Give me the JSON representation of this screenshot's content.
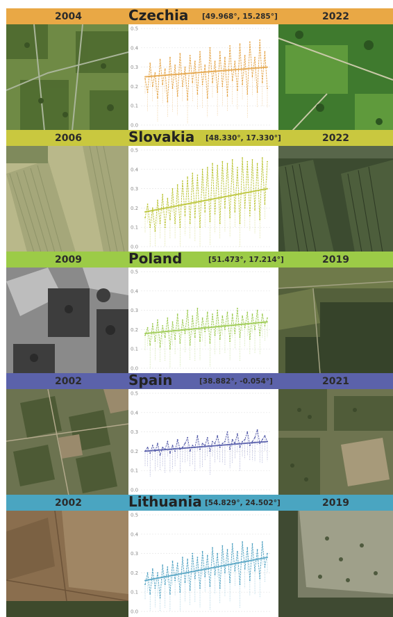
{
  "colors": {
    "czechia": "#E9A845",
    "slovakia": "#C9C83F",
    "poland": "#9CCB47",
    "spain": "#5B62AA",
    "lithuania": "#4AA5C1"
  },
  "panels": [
    {
      "id": "czechia",
      "year_left": "2004",
      "country": "Czechia",
      "coords": "[49.968°, 15.285°]",
      "year_right": "2022",
      "header_color": "#E9A845",
      "line_color": "#E3A141",
      "image_left": "aerial photograph, orchard rows with dirt tracks",
      "image_right": "aerial photograph, green orchard with scattered trees"
    },
    {
      "id": "slovakia",
      "year_left": "2006",
      "country": "Slovakia",
      "coords": "[48.330°, 17.330°]",
      "year_right": "2022",
      "header_color": "#C9C83F",
      "line_color": "#B8C22E",
      "image_left": "aerial photograph, striped agricultural fields",
      "image_right": "aerial photograph, dark green plantation blocks"
    },
    {
      "id": "poland",
      "year_left": "2009",
      "country": "Poland",
      "coords": "[51.473°, 17.214°]",
      "year_right": "2019",
      "header_color": "#9CCB47",
      "line_color": "#98C84A",
      "image_left": "grayscale aerial photograph, fields and tree stands",
      "image_right": "aerial photograph, forested parcels"
    },
    {
      "id": "spain",
      "year_left": "2002",
      "country": "Spain",
      "coords": "[38.882°, -0.054°]",
      "year_right": "2021",
      "header_color": "#5B62AA",
      "line_color": "#4E55A6",
      "image_left": "aerial photograph, patchwork of orchards",
      "image_right": "aerial photograph, orchards and scrubland"
    },
    {
      "id": "lithuania",
      "year_left": "2002",
      "country": "Lithuania",
      "coords": "[54.829°, 24.502°]",
      "year_right": "2019",
      "header_color": "#4AA5C1",
      "line_color": "#4C9FC0",
      "image_left": "aerial photograph, bare brown fields",
      "image_right": "aerial photograph, clearing with young forest"
    }
  ],
  "chart_data": [
    {
      "type": "line",
      "title": "",
      "yticks": [
        "0.0",
        "0.1",
        "0.2",
        "0.3",
        "0.4",
        "0.5"
      ],
      "ylim": [
        0,
        0.5
      ],
      "series": [
        {
          "values": [
            0.24,
            0.17,
            0.32,
            0.2,
            0.27,
            0.14,
            0.34,
            0.21,
            0.29,
            0.12,
            0.35,
            0.19,
            0.31,
            0.15,
            0.37,
            0.2,
            0.3,
            0.13,
            0.36,
            0.22,
            0.33,
            0.16,
            0.38,
            0.21,
            0.31,
            0.14,
            0.4,
            0.22,
            0.33,
            0.17,
            0.38,
            0.2,
            0.35,
            0.15,
            0.41,
            0.23,
            0.33,
            0.18,
            0.42,
            0.21,
            0.36,
            0.16,
            0.43,
            0.25,
            0.35,
            0.17,
            0.44,
            0.22,
            0.38,
            0.19
          ]
        },
        {
          "values": [
            0.25,
            0.3
          ]
        }
      ]
    },
    {
      "type": "line",
      "title": "",
      "yticks": [
        "0.0",
        "0.1",
        "0.2",
        "0.3",
        "0.4",
        "0.5"
      ],
      "ylim": [
        0,
        0.5
      ],
      "series": [
        {
          "values": [
            0.15,
            0.22,
            0.1,
            0.2,
            0.08,
            0.24,
            0.12,
            0.27,
            0.1,
            0.25,
            0.14,
            0.3,
            0.12,
            0.32,
            0.1,
            0.34,
            0.16,
            0.36,
            0.12,
            0.38,
            0.15,
            0.37,
            0.1,
            0.4,
            0.18,
            0.41,
            0.13,
            0.43,
            0.17,
            0.42,
            0.12,
            0.44,
            0.2,
            0.43,
            0.15,
            0.45,
            0.18,
            0.41,
            0.12,
            0.46,
            0.2,
            0.44,
            0.16,
            0.45,
            0.19,
            0.43,
            0.14,
            0.46,
            0.22,
            0.44
          ]
        },
        {
          "values": [
            0.18,
            0.3
          ]
        }
      ]
    },
    {
      "type": "line",
      "title": "",
      "yticks": [
        "0.0",
        "0.1",
        "0.2",
        "0.3",
        "0.4",
        "0.5"
      ],
      "ylim": [
        0,
        0.5
      ],
      "series": [
        {
          "values": [
            0.17,
            0.21,
            0.12,
            0.23,
            0.14,
            0.25,
            0.11,
            0.22,
            0.16,
            0.26,
            0.1,
            0.24,
            0.15,
            0.28,
            0.13,
            0.25,
            0.18,
            0.3,
            0.12,
            0.27,
            0.16,
            0.31,
            0.14,
            0.26,
            0.19,
            0.29,
            0.13,
            0.28,
            0.17,
            0.3,
            0.15,
            0.27,
            0.2,
            0.29,
            0.14,
            0.28,
            0.18,
            0.31,
            0.16,
            0.27,
            0.21,
            0.29,
            0.15,
            0.28,
            0.2,
            0.3,
            0.17,
            0.28,
            0.22,
            0.26
          ]
        },
        {
          "values": [
            0.18,
            0.24
          ]
        }
      ]
    },
    {
      "type": "line",
      "title": "",
      "yticks": [
        "0.0",
        "0.1",
        "0.2",
        "0.3",
        "0.4",
        "0.5"
      ],
      "ylim": [
        0,
        0.5
      ],
      "series": [
        {
          "values": [
            0.2,
            0.22,
            0.19,
            0.23,
            0.2,
            0.24,
            0.18,
            0.22,
            0.21,
            0.25,
            0.19,
            0.23,
            0.2,
            0.26,
            0.21,
            0.22,
            0.24,
            0.27,
            0.2,
            0.23,
            0.22,
            0.28,
            0.21,
            0.24,
            0.23,
            0.27,
            0.2,
            0.25,
            0.24,
            0.28,
            0.22,
            0.24,
            0.25,
            0.3,
            0.21,
            0.26,
            0.24,
            0.29,
            0.22,
            0.25,
            0.26,
            0.3,
            0.23,
            0.25,
            0.27,
            0.31,
            0.24,
            0.26,
            0.28,
            0.25
          ]
        },
        {
          "values": [
            0.2,
            0.25
          ]
        }
      ]
    },
    {
      "type": "line",
      "title": "",
      "yticks": [
        "0.0",
        "0.1",
        "0.2",
        "0.3",
        "0.4",
        "0.5"
      ],
      "ylim": [
        0,
        0.5
      ],
      "series": [
        {
          "values": [
            0.14,
            0.2,
            0.09,
            0.22,
            0.12,
            0.2,
            0.07,
            0.24,
            0.14,
            0.23,
            0.09,
            0.26,
            0.16,
            0.25,
            0.1,
            0.28,
            0.15,
            0.27,
            0.11,
            0.3,
            0.17,
            0.28,
            0.12,
            0.31,
            0.18,
            0.29,
            0.13,
            0.33,
            0.19,
            0.3,
            0.12,
            0.34,
            0.2,
            0.32,
            0.15,
            0.35,
            0.21,
            0.31,
            0.14,
            0.36,
            0.22,
            0.33,
            0.16,
            0.35,
            0.21,
            0.32,
            0.17,
            0.36,
            0.23,
            0.3
          ]
        },
        {
          "values": [
            0.16,
            0.28
          ]
        }
      ]
    }
  ]
}
